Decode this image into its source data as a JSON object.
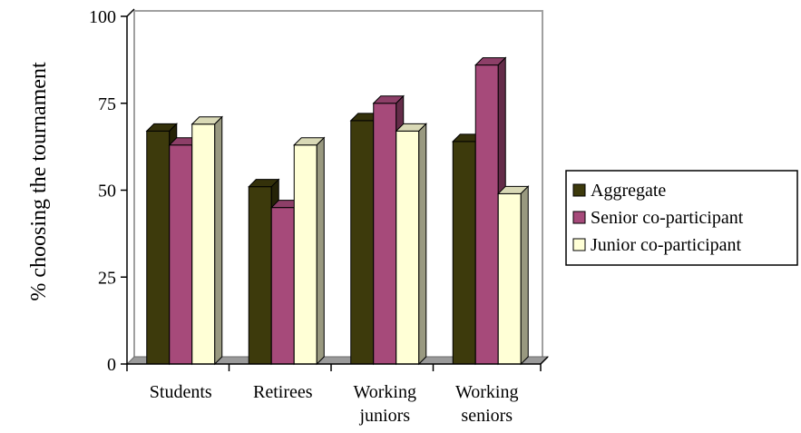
{
  "chart_data": {
    "type": "bar",
    "style": "3d-clustered",
    "title": "",
    "xlabel": "",
    "ylabel": "% choosing the tournament",
    "ylim": [
      0,
      100
    ],
    "yticks": [
      "0",
      "25",
      "50",
      "75",
      "100"
    ],
    "categories": [
      [
        "Students"
      ],
      [
        "Retirees"
      ],
      [
        "Working",
        "juniors"
      ],
      [
        "Working",
        "seniors"
      ]
    ],
    "series": [
      {
        "name": "Aggregate",
        "color": "#3d3a0c",
        "values": [
          67,
          51,
          70,
          64
        ]
      },
      {
        "name": "Senior co-participant",
        "color": "#a64a7a",
        "values": [
          63,
          45,
          75,
          86
        ]
      },
      {
        "name": "Junior co-participant",
        "color": "#ffffd6",
        "values": [
          69,
          63,
          67,
          49
        ]
      }
    ],
    "grid": false,
    "legend_position": "right"
  }
}
